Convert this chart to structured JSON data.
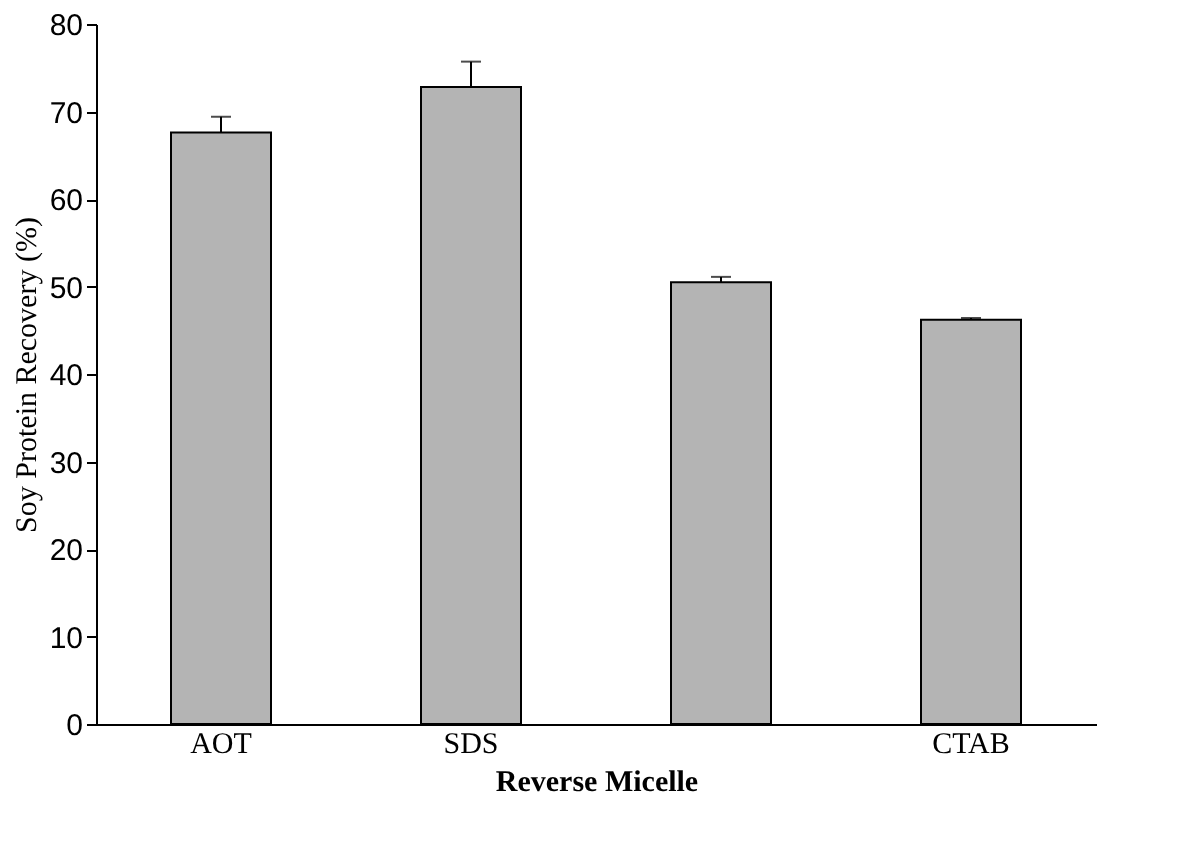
{
  "chart_data": {
    "type": "bar",
    "xlabel": "Reverse Micelle",
    "ylabel": "Soy Protein Recovery (%)",
    "categories": [
      "AOT",
      "SDS",
      null,
      "CTAB"
    ],
    "values": [
      67.6,
      72.8,
      50.5,
      46.2
    ],
    "errors": [
      [
        67.6,
        69.4
      ],
      [
        72.8,
        75.7
      ],
      [
        50.5,
        51.1
      ],
      [
        46.2,
        46.4
      ]
    ],
    "color": "#b4b4b4",
    "ylim": [
      0,
      80
    ],
    "yticks": [
      0,
      10,
      20,
      30,
      40,
      50,
      60,
      70,
      80
    ],
    "grid": false
  }
}
